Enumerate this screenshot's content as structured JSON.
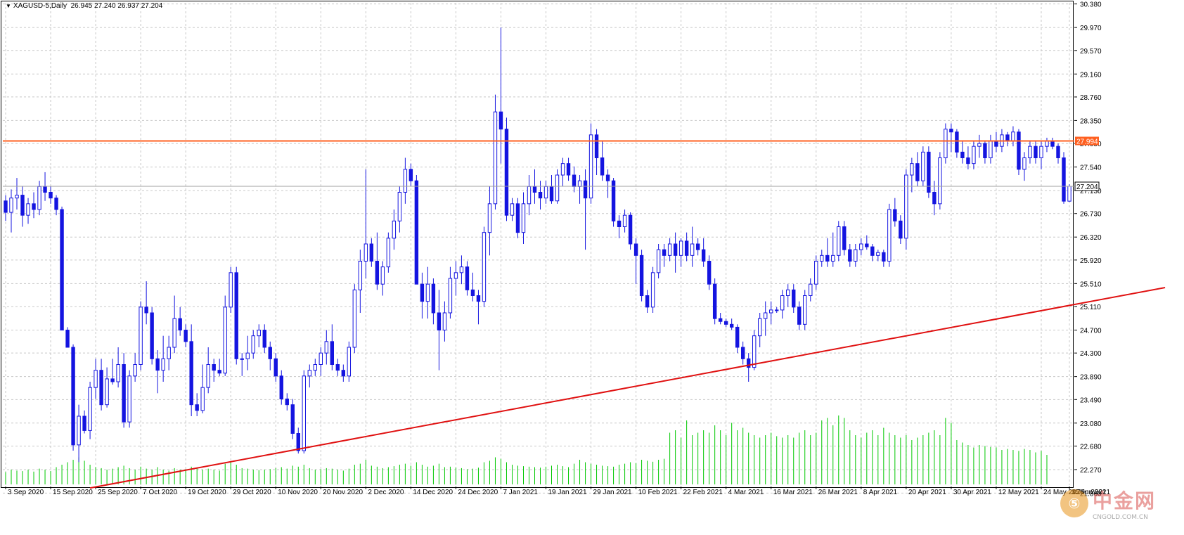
{
  "header": {
    "symbol_text": "XAGUSD-5,Daily",
    "ohlc_text": "26.945 27.240 26.937 27.204"
  },
  "watermark": {
    "cn_text": "中金网",
    "en_text": "CNGOLD.COM.CN",
    "badge_glyph": "⑤"
  },
  "colors": {
    "background": "#ffffff",
    "grid": "#c8c8c8",
    "candle": "#1414e0",
    "volume": "#00c800",
    "resistance_line": "#ff6020",
    "trend_line": "#e01010",
    "current_price_line": "#a0a0a0"
  },
  "chart_data": {
    "type": "candlestick",
    "symbol": "XAGUSD-5",
    "timeframe": "Daily",
    "ylim": [
      22.0,
      30.4
    ],
    "y_ticks": [
      "30.380",
      "29.970",
      "29.570",
      "29.160",
      "28.760",
      "28.350",
      "27.950",
      "27.540",
      "27.130",
      "26.730",
      "26.320",
      "25.920",
      "25.510",
      "25.110",
      "24.700",
      "24.300",
      "23.890",
      "23.490",
      "23.080",
      "22.680",
      "22.270",
      "21.860"
    ],
    "x_ticks": [
      "3 Sep 2020",
      "15 Sep 2020",
      "25 Sep 2020",
      "7 Oct 2020",
      "19 Oct 2020",
      "29 Oct 2020",
      "10 Nov 2020",
      "20 Nov 2020",
      "2 Dec 2020",
      "14 Dec 2020",
      "24 Dec 2020",
      "7 Jan 2021",
      "19 Jan 2021",
      "29 Jan 2021",
      "10 Feb 2021",
      "22 Feb 2021",
      "4 Mar 2021",
      "16 Mar 2021",
      "26 Mar 2021",
      "8 Apr 2021",
      "20 Apr 2021",
      "30 Apr 2021",
      "12 May 2021",
      "24 May 2021",
      "3 Jun 2021",
      "15 Jun 2021"
    ],
    "current_price": {
      "value": 27.204,
      "label": "27.204"
    },
    "resistance_line": {
      "value": 27.994,
      "label": "27.994"
    },
    "trend_line": {
      "from": {
        "x": "24 Sep 2020",
        "y": 21.95
      },
      "to": {
        "x": "18 Jun 2021",
        "y": 25.44
      }
    },
    "anchor_date": "3 Sep 2020",
    "candles": [
      [
        26.95,
        27.05,
        26.6,
        26.75
      ],
      [
        26.75,
        27.15,
        26.4,
        27.0
      ],
      [
        27.0,
        27.35,
        26.8,
        27.05
      ],
      [
        27.05,
        27.2,
        26.5,
        26.7
      ],
      [
        26.7,
        27.0,
        26.55,
        26.9
      ],
      [
        26.9,
        27.1,
        26.65,
        26.8
      ],
      [
        26.8,
        27.3,
        26.7,
        27.2
      ],
      [
        27.2,
        27.45,
        26.95,
        27.1
      ],
      [
        27.1,
        27.2,
        26.9,
        27.0
      ],
      [
        27.0,
        27.05,
        26.7,
        26.8
      ],
      [
        26.8,
        26.85,
        24.7,
        24.7
      ],
      [
        24.7,
        24.75,
        24.4,
        24.4
      ],
      [
        24.4,
        24.45,
        22.6,
        22.7
      ],
      [
        22.7,
        23.4,
        22.4,
        23.2
      ],
      [
        23.2,
        23.3,
        22.9,
        22.95
      ],
      [
        22.95,
        23.8,
        22.8,
        23.7
      ],
      [
        23.7,
        24.2,
        23.5,
        24.0
      ],
      [
        24.0,
        24.2,
        23.3,
        23.4
      ],
      [
        23.4,
        24.05,
        23.35,
        23.85
      ],
      [
        23.85,
        24.2,
        23.75,
        23.8
      ],
      [
        23.8,
        24.4,
        23.7,
        24.1
      ],
      [
        24.1,
        24.3,
        23.0,
        23.1
      ],
      [
        23.1,
        24.0,
        23.0,
        23.9
      ],
      [
        23.9,
        24.3,
        23.8,
        24.1
      ],
      [
        24.1,
        25.2,
        24.0,
        25.1
      ],
      [
        25.1,
        25.55,
        24.8,
        25.0
      ],
      [
        25.0,
        25.1,
        24.1,
        24.2
      ],
      [
        24.2,
        24.35,
        23.6,
        24.0
      ],
      [
        24.0,
        24.6,
        23.8,
        24.2
      ],
      [
        24.2,
        24.6,
        24.0,
        24.4
      ],
      [
        24.4,
        25.3,
        24.3,
        24.9
      ],
      [
        24.9,
        25.1,
        24.6,
        24.7
      ],
      [
        24.7,
        24.8,
        24.4,
        24.5
      ],
      [
        24.5,
        24.8,
        23.2,
        23.4
      ],
      [
        23.4,
        23.6,
        23.2,
        23.3
      ],
      [
        23.3,
        24.1,
        23.25,
        23.7
      ],
      [
        23.7,
        24.4,
        23.6,
        24.1
      ],
      [
        24.1,
        24.2,
        23.8,
        24.0
      ],
      [
        24.0,
        24.2,
        23.9,
        23.95
      ],
      [
        23.95,
        25.3,
        23.9,
        25.1
      ],
      [
        25.1,
        25.8,
        25.0,
        25.7
      ],
      [
        25.7,
        25.8,
        24.1,
        24.2
      ],
      [
        24.2,
        24.3,
        23.9,
        24.2
      ],
      [
        24.2,
        24.6,
        24.0,
        24.3
      ],
      [
        24.3,
        24.7,
        24.2,
        24.6
      ],
      [
        24.6,
        24.8,
        24.4,
        24.7
      ],
      [
        24.7,
        24.8,
        24.3,
        24.4
      ],
      [
        24.4,
        24.5,
        24.0,
        24.2
      ],
      [
        24.2,
        24.3,
        23.8,
        23.9
      ],
      [
        23.9,
        24.0,
        23.4,
        23.5
      ],
      [
        23.5,
        23.6,
        23.3,
        23.4
      ],
      [
        23.4,
        23.5,
        22.8,
        22.9
      ],
      [
        22.9,
        23.0,
        22.55,
        22.6
      ],
      [
        22.6,
        24.0,
        22.55,
        23.9
      ],
      [
        23.9,
        24.1,
        23.7,
        24.0
      ],
      [
        24.0,
        24.2,
        23.9,
        24.1
      ],
      [
        24.1,
        24.4,
        23.9,
        24.3
      ],
      [
        24.3,
        24.7,
        24.1,
        24.5
      ],
      [
        24.5,
        24.8,
        24.0,
        24.1
      ],
      [
        24.1,
        24.2,
        23.9,
        24.0
      ],
      [
        24.0,
        24.1,
        23.8,
        23.9
      ],
      [
        23.9,
        24.5,
        23.8,
        24.4
      ],
      [
        24.4,
        25.5,
        24.3,
        25.4
      ],
      [
        25.4,
        26.1,
        25.0,
        25.9
      ],
      [
        25.9,
        27.5,
        25.6,
        26.2
      ],
      [
        26.2,
        26.3,
        25.8,
        25.9
      ],
      [
        25.9,
        26.4,
        25.4,
        25.5
      ],
      [
        25.5,
        25.9,
        25.3,
        25.8
      ],
      [
        25.8,
        26.4,
        25.7,
        26.3
      ],
      [
        26.3,
        26.8,
        26.1,
        26.6
      ],
      [
        26.6,
        27.2,
        26.4,
        27.1
      ],
      [
        27.1,
        27.7,
        26.9,
        27.5
      ],
      [
        27.5,
        27.6,
        27.2,
        27.3
      ],
      [
        27.3,
        27.4,
        25.5,
        25.5
      ],
      [
        25.5,
        25.7,
        24.9,
        25.2
      ],
      [
        25.2,
        25.8,
        24.9,
        25.5
      ],
      [
        25.5,
        25.6,
        24.8,
        25.0
      ],
      [
        25.0,
        25.4,
        24.0,
        24.7
      ],
      [
        24.7,
        25.2,
        24.5,
        25.0
      ],
      [
        25.0,
        25.8,
        24.9,
        25.6
      ],
      [
        25.6,
        25.9,
        25.3,
        25.7
      ],
      [
        25.7,
        26.0,
        25.5,
        25.8
      ],
      [
        25.8,
        25.9,
        25.3,
        25.4
      ],
      [
        25.4,
        25.7,
        25.2,
        25.3
      ],
      [
        25.3,
        25.4,
        24.8,
        25.2
      ],
      [
        25.2,
        26.5,
        25.1,
        26.4
      ],
      [
        26.4,
        27.2,
        26.0,
        26.9
      ],
      [
        26.9,
        28.8,
        26.8,
        28.5
      ],
      [
        28.5,
        29.97,
        27.6,
        28.2
      ],
      [
        28.2,
        28.4,
        26.6,
        26.7
      ],
      [
        26.7,
        27.0,
        26.6,
        26.9
      ],
      [
        26.9,
        27.0,
        26.3,
        26.4
      ],
      [
        26.4,
        27.1,
        26.2,
        26.9
      ],
      [
        26.9,
        27.4,
        26.7,
        27.2
      ],
      [
        27.2,
        27.5,
        26.9,
        27.1
      ],
      [
        27.1,
        27.3,
        26.8,
        27.0
      ],
      [
        27.0,
        27.3,
        26.9,
        27.2
      ],
      [
        27.2,
        27.4,
        26.9,
        26.95
      ],
      [
        26.95,
        27.5,
        26.9,
        27.4
      ],
      [
        27.4,
        27.7,
        27.2,
        27.6
      ],
      [
        27.6,
        27.7,
        27.3,
        27.4
      ],
      [
        27.4,
        27.55,
        27.1,
        27.2
      ],
      [
        27.2,
        27.4,
        26.9,
        27.3
      ],
      [
        27.3,
        27.5,
        26.1,
        27.0
      ],
      [
        27.0,
        28.3,
        26.9,
        28.1
      ],
      [
        28.1,
        28.2,
        27.4,
        27.7
      ],
      [
        27.7,
        28.0,
        27.3,
        27.4
      ],
      [
        27.4,
        27.5,
        27.0,
        27.3
      ],
      [
        27.3,
        27.35,
        26.5,
        26.6
      ],
      [
        26.6,
        26.7,
        26.3,
        26.5
      ],
      [
        26.5,
        26.8,
        26.4,
        26.7
      ],
      [
        26.7,
        26.75,
        26.1,
        26.2
      ],
      [
        26.2,
        26.3,
        25.5,
        26.0
      ],
      [
        26.0,
        26.1,
        25.2,
        25.3
      ],
      [
        25.3,
        25.4,
        25.0,
        25.1
      ],
      [
        25.1,
        25.8,
        25.0,
        25.7
      ],
      [
        25.7,
        26.2,
        25.6,
        26.1
      ],
      [
        26.1,
        26.2,
        25.8,
        26.0
      ],
      [
        26.0,
        26.3,
        25.9,
        26.2
      ],
      [
        26.2,
        26.4,
        25.7,
        26.0
      ],
      [
        26.0,
        26.3,
        25.8,
        26.25
      ],
      [
        26.25,
        26.4,
        25.9,
        26.0
      ],
      [
        26.0,
        26.5,
        25.8,
        26.2
      ],
      [
        26.2,
        26.3,
        26.0,
        26.1
      ],
      [
        26.1,
        26.3,
        25.8,
        25.9
      ],
      [
        25.9,
        26.0,
        25.4,
        25.5
      ],
      [
        25.5,
        25.6,
        24.8,
        24.9
      ],
      [
        24.9,
        25.0,
        24.8,
        24.85
      ],
      [
        24.85,
        24.9,
        24.75,
        24.8
      ],
      [
        24.8,
        24.9,
        24.7,
        24.75
      ],
      [
        24.75,
        24.8,
        24.3,
        24.4
      ],
      [
        24.4,
        24.5,
        24.1,
        24.2
      ],
      [
        24.2,
        24.3,
        23.8,
        24.05
      ],
      [
        24.05,
        24.7,
        24.0,
        24.6
      ],
      [
        24.6,
        25.0,
        24.4,
        24.9
      ],
      [
        24.9,
        25.2,
        24.6,
        25.0
      ],
      [
        25.0,
        25.2,
        24.8,
        25.05
      ],
      [
        25.05,
        25.1,
        25.0,
        25.05
      ],
      [
        25.05,
        25.4,
        24.9,
        25.3
      ],
      [
        25.3,
        25.5,
        25.1,
        25.4
      ],
      [
        25.4,
        25.5,
        25.0,
        25.1
      ],
      [
        25.1,
        25.2,
        24.7,
        24.8
      ],
      [
        24.8,
        25.4,
        24.7,
        25.3
      ],
      [
        25.3,
        25.6,
        25.2,
        25.5
      ],
      [
        25.5,
        26.0,
        25.4,
        25.9
      ],
      [
        25.9,
        26.1,
        25.8,
        26.0
      ],
      [
        26.0,
        26.3,
        25.8,
        25.9
      ],
      [
        25.9,
        26.4,
        25.8,
        26.0
      ],
      [
        26.0,
        26.6,
        25.9,
        26.5
      ],
      [
        26.5,
        26.6,
        26.0,
        26.1
      ],
      [
        26.1,
        26.2,
        25.8,
        25.9
      ],
      [
        25.9,
        26.2,
        25.8,
        26.1
      ],
      [
        26.1,
        26.3,
        26.0,
        26.2
      ],
      [
        26.2,
        26.35,
        26.1,
        26.15
      ],
      [
        26.15,
        26.2,
        25.9,
        26.0
      ],
      [
        26.0,
        26.1,
        25.9,
        26.05
      ],
      [
        26.05,
        26.1,
        25.8,
        25.9
      ],
      [
        25.9,
        26.9,
        25.8,
        26.8
      ],
      [
        26.8,
        27.0,
        26.5,
        26.6
      ],
      [
        26.6,
        26.7,
        26.2,
        26.3
      ],
      [
        26.3,
        27.5,
        26.1,
        27.4
      ],
      [
        27.4,
        27.7,
        27.1,
        27.6
      ],
      [
        27.6,
        27.8,
        27.2,
        27.3
      ],
      [
        27.3,
        27.9,
        27.2,
        27.8
      ],
      [
        27.8,
        27.9,
        27.0,
        27.1
      ],
      [
        27.1,
        27.3,
        26.7,
        26.9
      ],
      [
        26.9,
        27.8,
        26.8,
        27.7
      ],
      [
        27.7,
        28.3,
        27.6,
        28.2
      ],
      [
        28.2,
        28.3,
        27.8,
        28.15
      ],
      [
        28.15,
        28.2,
        27.7,
        27.8
      ],
      [
        27.8,
        28.0,
        27.6,
        27.7
      ],
      [
        27.7,
        27.9,
        27.5,
        27.6
      ],
      [
        27.6,
        28.0,
        27.5,
        27.9
      ],
      [
        27.9,
        28.1,
        27.7,
        27.95
      ],
      [
        27.95,
        28.0,
        27.6,
        27.7
      ],
      [
        27.7,
        28.1,
        27.6,
        28.0
      ],
      [
        28.0,
        28.15,
        27.8,
        27.9
      ],
      [
        27.9,
        28.2,
        27.8,
        28.1
      ],
      [
        28.1,
        28.15,
        27.9,
        28.0
      ],
      [
        28.0,
        28.25,
        27.9,
        28.15
      ],
      [
        28.15,
        28.2,
        27.4,
        27.5
      ],
      [
        27.5,
        27.8,
        27.3,
        27.7
      ],
      [
        27.7,
        28.0,
        27.6,
        27.9
      ],
      [
        27.9,
        28.0,
        27.6,
        27.7
      ],
      [
        27.7,
        28.0,
        27.5,
        27.9
      ],
      [
        27.9,
        28.05,
        27.8,
        28.0
      ],
      [
        28.0,
        28.05,
        27.85,
        27.9
      ],
      [
        27.9,
        27.95,
        27.6,
        27.7
      ],
      [
        27.7,
        27.8,
        26.9,
        26.945
      ],
      [
        26.945,
        27.24,
        26.937,
        27.204
      ]
    ],
    "volume_ratio": [
      0.25,
      0.3,
      0.28,
      0.27,
      0.3,
      0.26,
      0.32,
      0.3,
      0.27,
      0.35,
      0.4,
      0.45,
      0.5,
      0.55,
      0.48,
      0.4,
      0.35,
      0.33,
      0.3,
      0.32,
      0.35,
      0.38,
      0.33,
      0.3,
      0.36,
      0.32,
      0.3,
      0.35,
      0.3,
      0.28,
      0.33,
      0.3,
      0.31,
      0.36,
      0.34,
      0.3,
      0.32,
      0.3,
      0.28,
      0.42,
      0.45,
      0.4,
      0.33,
      0.32,
      0.3,
      0.29,
      0.3,
      0.31,
      0.33,
      0.35,
      0.32,
      0.38,
      0.36,
      0.4,
      0.33,
      0.3,
      0.31,
      0.33,
      0.32,
      0.3,
      0.28,
      0.32,
      0.4,
      0.42,
      0.5,
      0.38,
      0.36,
      0.33,
      0.35,
      0.37,
      0.4,
      0.42,
      0.38,
      0.45,
      0.4,
      0.36,
      0.38,
      0.42,
      0.35,
      0.36,
      0.34,
      0.33,
      0.31,
      0.32,
      0.34,
      0.45,
      0.48,
      0.55,
      0.52,
      0.45,
      0.4,
      0.38,
      0.37,
      0.36,
      0.35,
      0.34,
      0.36,
      0.38,
      0.4,
      0.37,
      0.35,
      0.42,
      0.5,
      0.45,
      0.42,
      0.4,
      0.38,
      0.37,
      0.36,
      0.4,
      0.42,
      0.45,
      0.43,
      0.5,
      0.48,
      0.46,
      0.5,
      0.52,
      1.05,
      1.1,
      0.95,
      1.3,
      1.0,
      1.05,
      1.1,
      1.05,
      1.2,
      1.1,
      1.0,
      1.25,
      1.1,
      1.15,
      1.05,
      1.0,
      0.95,
      1.0,
      1.05,
      0.98,
      0.95,
      1.0,
      0.95,
      1.05,
      1.1,
      1.0,
      1.05,
      1.3,
      1.35,
      1.2,
      1.4,
      1.35,
      1.1,
      1.0,
      0.95,
      1.05,
      1.1,
      1.0,
      1.15,
      1.05,
      1.0,
      0.95,
      1.0,
      0.9,
      0.95,
      1.0,
      1.05,
      1.1,
      1.0,
      1.35,
      1.25,
      0.9,
      0.85,
      0.8,
      0.75,
      0.8,
      0.78,
      0.76,
      0.75,
      0.7,
      0.72,
      0.7,
      0.68,
      0.72,
      0.7,
      0.65,
      0.68,
      0.6
    ]
  }
}
